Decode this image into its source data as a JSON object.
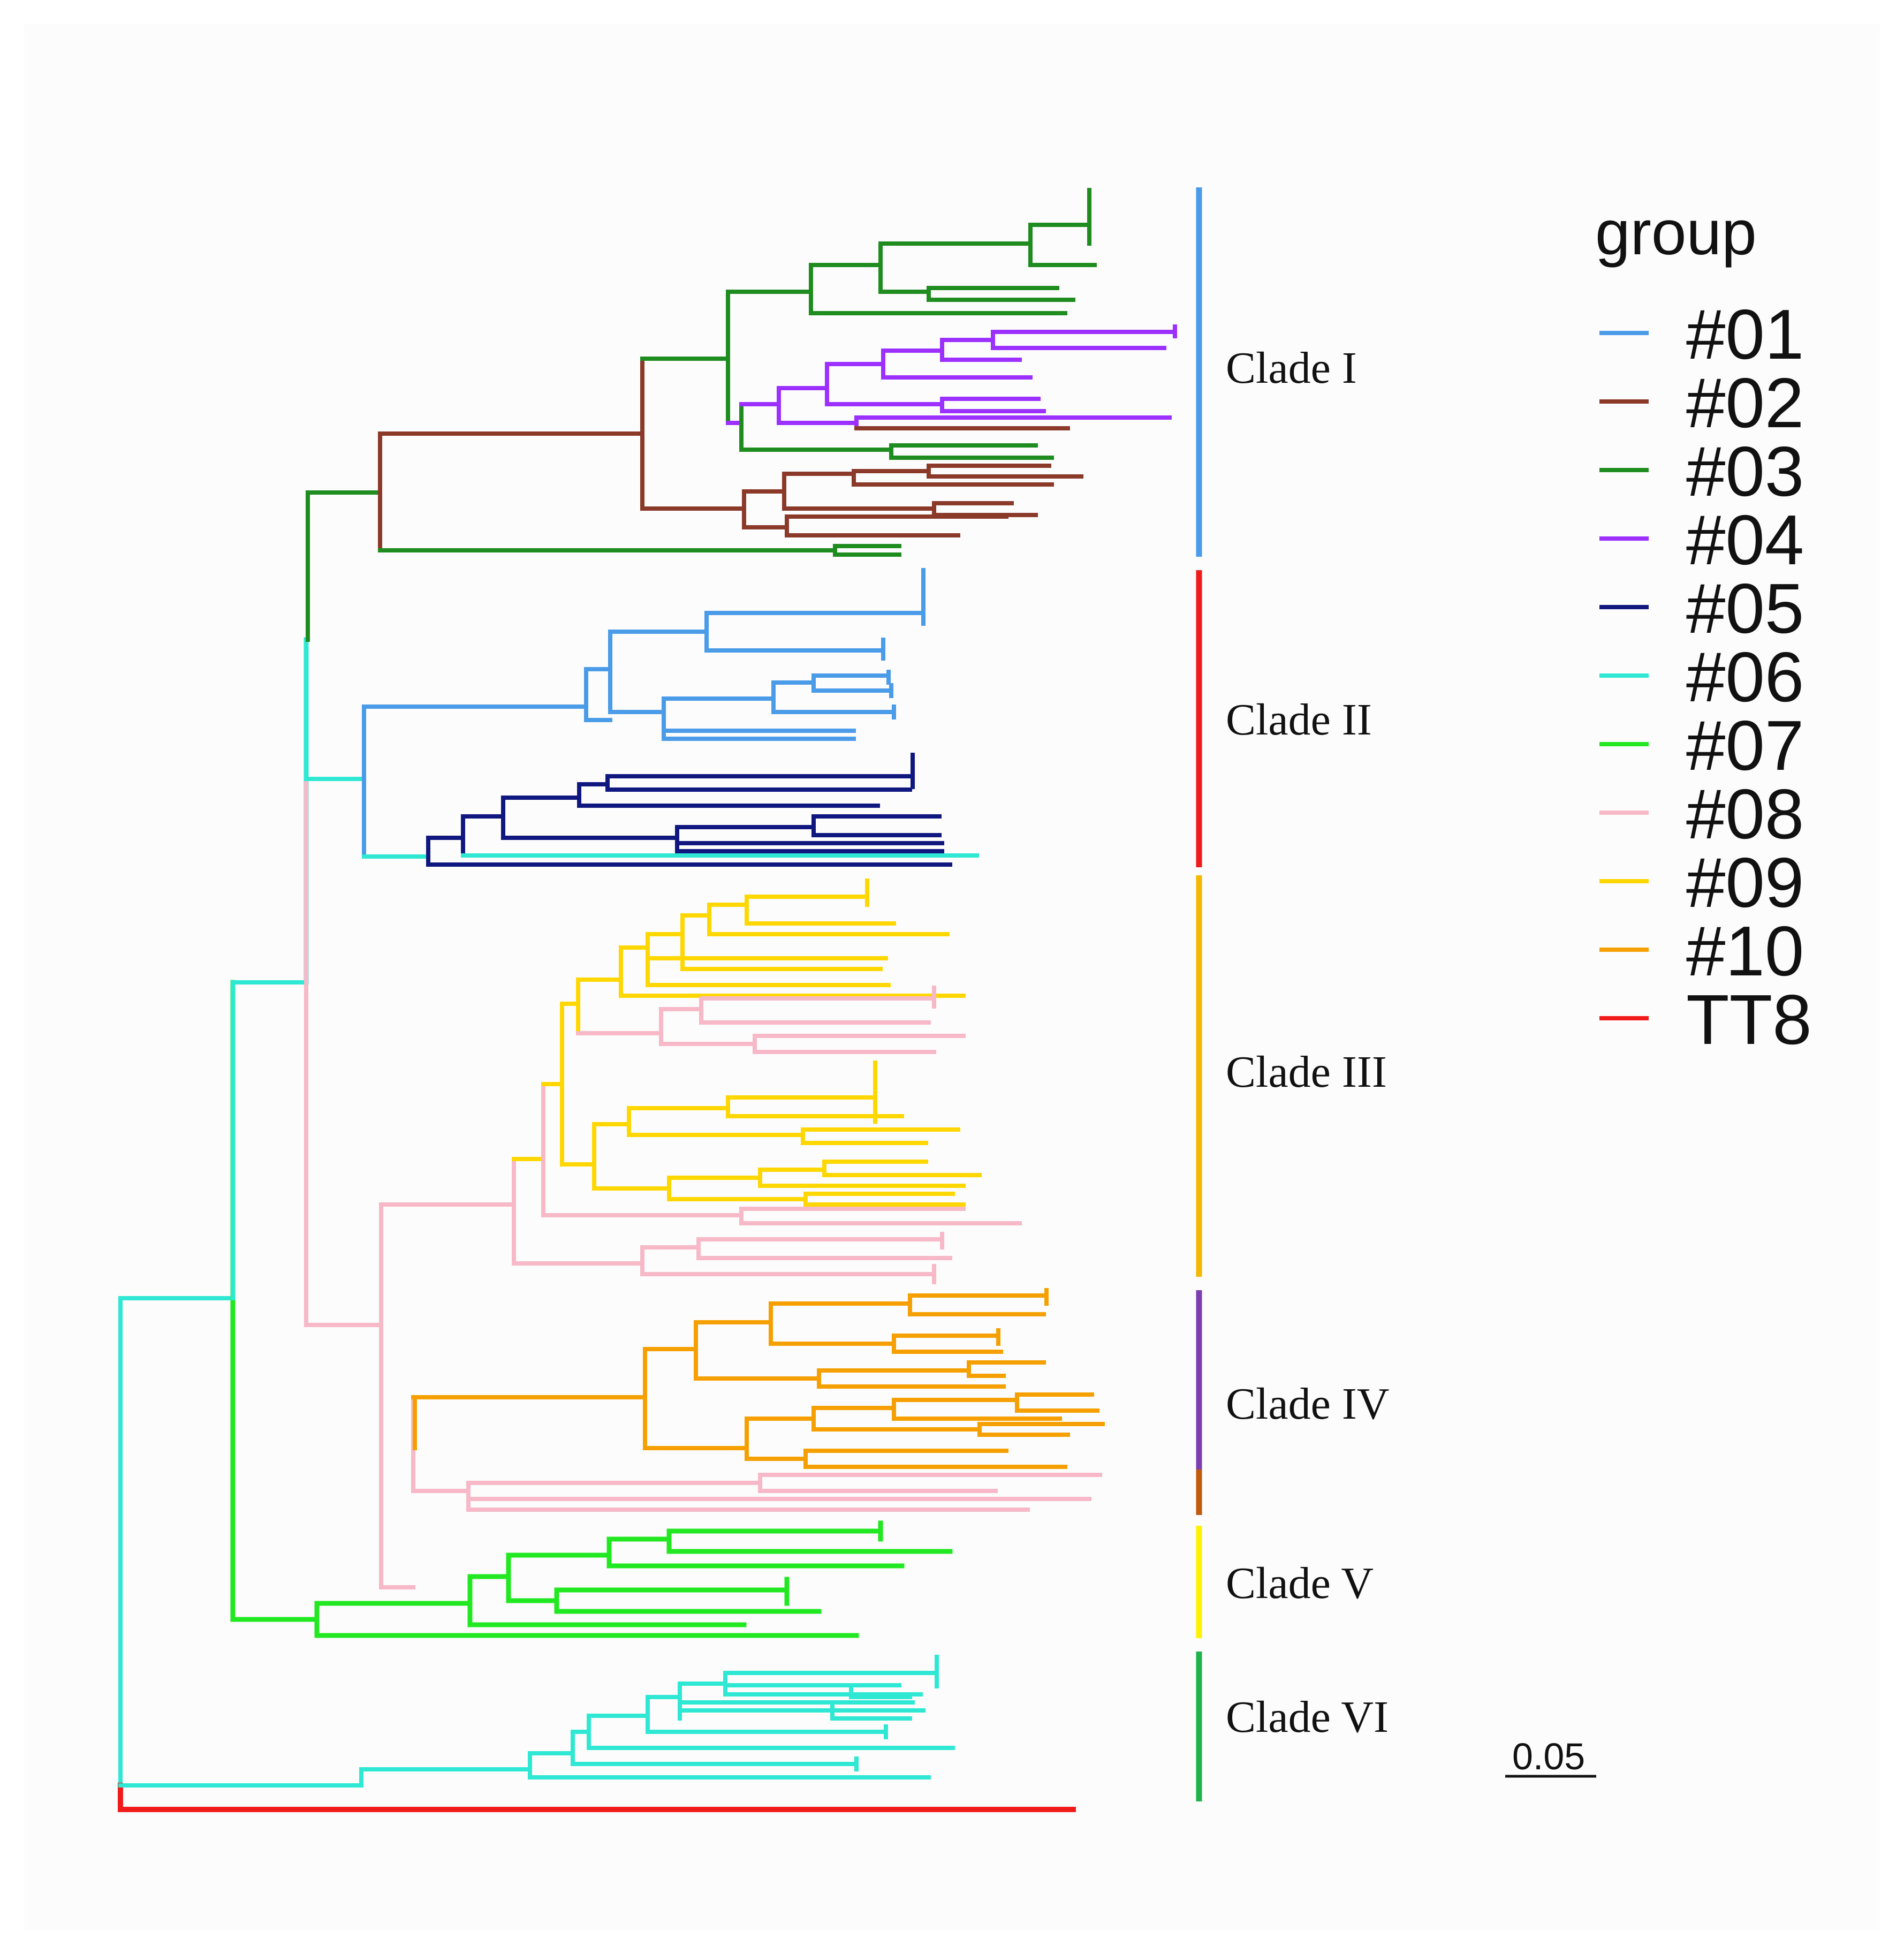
{
  "clades": [
    {
      "label": "Clade I",
      "color": "#4a9be8"
    },
    {
      "label": "Clade II",
      "color": "#f01c1c"
    },
    {
      "label": "Clade III",
      "color": "#f5b800"
    },
    {
      "label": "Clade IV",
      "color": "#7d3fb0"
    },
    {
      "label": "Clade V",
      "color": "#fff200"
    },
    {
      "label": "Clade VI",
      "color": "#1fb34a"
    }
  ],
  "clade_iv_extra_color": "#c05a0d",
  "legend": {
    "title": "group",
    "items": [
      {
        "label": "#01",
        "color": "#4a9be8"
      },
      {
        "label": "#02",
        "color": "#8b3a2a"
      },
      {
        "label": "#03",
        "color": "#1e8c1e"
      },
      {
        "label": "#04",
        "color": "#9b30ff"
      },
      {
        "label": "#05",
        "color": "#101880"
      },
      {
        "label": "#06",
        "color": "#2ee8d4"
      },
      {
        "label": "#07",
        "color": "#22e822"
      },
      {
        "label": "#08",
        "color": "#f7b8c8"
      },
      {
        "label": "#09",
        "color": "#ffd700"
      },
      {
        "label": "#10",
        "color": "#f5a000"
      },
      {
        "label": "TT8",
        "color": "#f01c1c"
      }
    ]
  },
  "scale_bar": {
    "label": "0.05"
  }
}
